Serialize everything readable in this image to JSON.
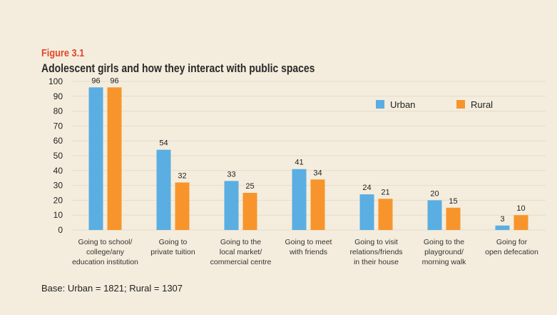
{
  "chart_data": {
    "type": "bar",
    "figure_label": "Figure 3.1",
    "title": "Adolescent girls and how they interact with public spaces",
    "xlabel": "",
    "ylabel": "",
    "ylim": [
      0,
      100
    ],
    "yticks": [
      0,
      10,
      20,
      30,
      40,
      50,
      60,
      70,
      80,
      90,
      100
    ],
    "grid": true,
    "legend_position": "top-right",
    "categories": [
      [
        "Going to school/",
        "college/any",
        "education institution"
      ],
      [
        "Going to",
        "private tuition"
      ],
      [
        "Going to the",
        "local market/",
        "commercial centre"
      ],
      [
        "Going to meet",
        "with friends"
      ],
      [
        "Going to visit",
        "relations/friends",
        "in their house"
      ],
      [
        "Going to the",
        "playground/",
        "morning walk"
      ],
      [
        "Going for",
        "open defecation"
      ]
    ],
    "series": [
      {
        "name": "Urban",
        "color": "#5aaee2",
        "values": [
          96,
          54,
          33,
          41,
          24,
          20,
          3
        ]
      },
      {
        "name": "Rural",
        "color": "#f7952c",
        "values": [
          96,
          32,
          25,
          34,
          21,
          15,
          10
        ]
      }
    ],
    "note": "Base: Urban = 1821; Rural = 1307"
  }
}
